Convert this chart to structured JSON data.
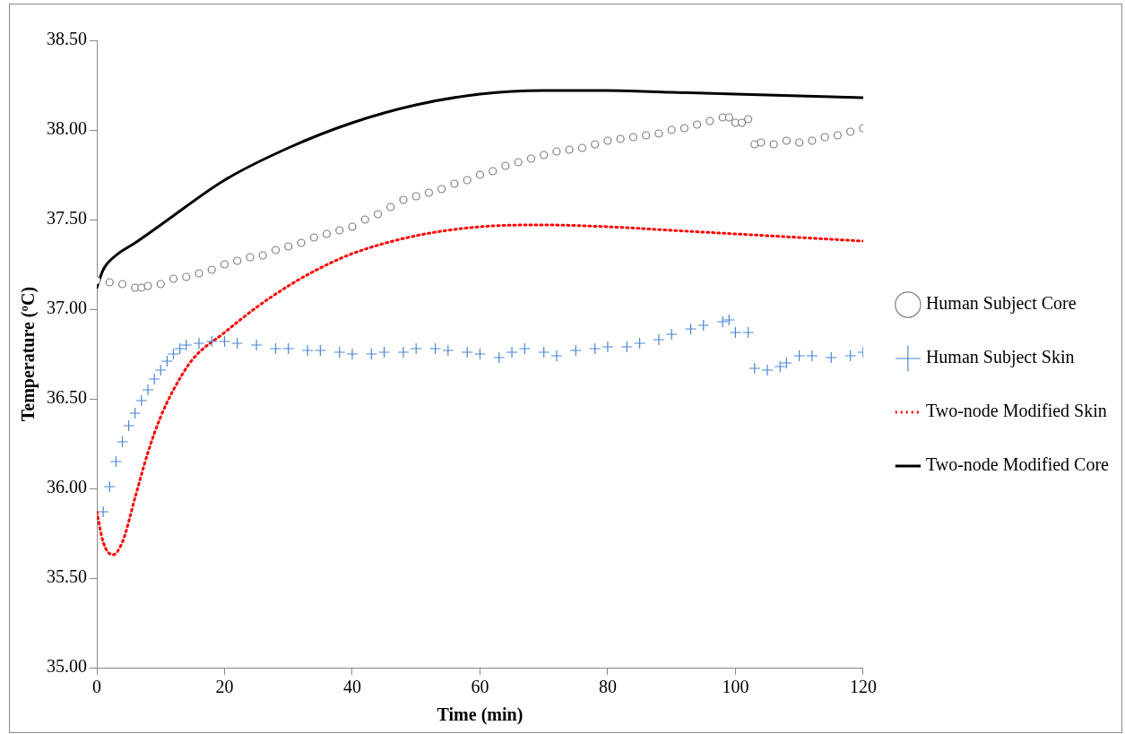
{
  "chart_data": {
    "type": "scatter",
    "xlabel": "Time (min)",
    "ylabel": "Temperature (ºC)",
    "xlim": [
      0,
      120
    ],
    "xticks": [
      0,
      20,
      40,
      60,
      80,
      100,
      120
    ],
    "ylim": [
      35,
      38.5
    ],
    "yticks": [
      {
        "value": 35,
        "label": "35.00"
      },
      {
        "value": 35.5,
        "label": "35.50"
      },
      {
        "value": 36,
        "label": "36.00"
      },
      {
        "value": 36.5,
        "label": "36.50"
      },
      {
        "value": 37,
        "label": "37.00"
      },
      {
        "value": 37.5,
        "label": "37.50"
      },
      {
        "value": 38,
        "label": "38.00"
      },
      {
        "value": 38.5,
        "label": "38.50"
      }
    ],
    "grid": false,
    "legend": "right",
    "series": [
      {
        "name": "Human Subject Core",
        "type": "scatter",
        "marker": "circle",
        "color": "#7f7f7f",
        "x": [
          0,
          2,
          4,
          6,
          7,
          8,
          10,
          12,
          14,
          16,
          18,
          20,
          22,
          24,
          26,
          28,
          30,
          32,
          34,
          36,
          38,
          40,
          42,
          44,
          46,
          48,
          50,
          52,
          54,
          56,
          58,
          60,
          62,
          64,
          66,
          68,
          70,
          72,
          74,
          76,
          78,
          80,
          82,
          84,
          86,
          88,
          90,
          92,
          94,
          96,
          98,
          99,
          100,
          101,
          102,
          103,
          104,
          106,
          108,
          110,
          112,
          114,
          116,
          118,
          120
        ],
        "values": [
          37.16,
          37.15,
          37.14,
          37.12,
          37.12,
          37.13,
          37.14,
          37.17,
          37.18,
          37.2,
          37.22,
          37.25,
          37.27,
          37.29,
          37.3,
          37.33,
          37.35,
          37.37,
          37.4,
          37.42,
          37.44,
          37.46,
          37.5,
          37.53,
          37.57,
          37.61,
          37.63,
          37.65,
          37.67,
          37.7,
          37.72,
          37.75,
          37.77,
          37.8,
          37.82,
          37.84,
          37.86,
          37.88,
          37.89,
          37.9,
          37.92,
          37.94,
          37.95,
          37.96,
          37.97,
          37.98,
          38,
          38.01,
          38.03,
          38.05,
          38.07,
          38.07,
          38.04,
          38.04,
          38.06,
          37.92,
          37.93,
          37.92,
          37.94,
          37.93,
          37.94,
          37.96,
          37.97,
          37.99,
          38.01
        ]
      },
      {
        "name": "Human Subject Skin",
        "type": "scatter",
        "marker": "cross",
        "color": "#4a86d4",
        "x": [
          1,
          2,
          3,
          4,
          5,
          6,
          7,
          8,
          9,
          10,
          11,
          12,
          13,
          14,
          16,
          18,
          20,
          22,
          25,
          28,
          30,
          33,
          35,
          38,
          40,
          43,
          45,
          48,
          50,
          53,
          55,
          58,
          60,
          63,
          65,
          67,
          70,
          72,
          75,
          78,
          80,
          83,
          85,
          88,
          90,
          93,
          95,
          98,
          99,
          100,
          102,
          103,
          105,
          107,
          108,
          110,
          112,
          115,
          118,
          120
        ],
        "values": [
          35.87,
          36.01,
          36.15,
          36.26,
          36.35,
          36.42,
          36.49,
          36.55,
          36.61,
          36.66,
          36.71,
          36.75,
          36.78,
          36.8,
          36.81,
          36.82,
          36.82,
          36.81,
          36.8,
          36.78,
          36.78,
          36.77,
          36.77,
          36.76,
          36.75,
          36.75,
          36.76,
          36.76,
          36.78,
          36.78,
          36.77,
          36.76,
          36.75,
          36.73,
          36.76,
          36.78,
          36.76,
          36.74,
          36.77,
          36.78,
          36.79,
          36.79,
          36.81,
          36.83,
          36.86,
          36.89,
          36.91,
          36.93,
          36.94,
          36.87,
          36.87,
          36.67,
          36.66,
          36.68,
          36.7,
          36.74,
          36.74,
          36.73,
          36.74,
          36.76
        ]
      },
      {
        "name": "Two-node Modified Skin",
        "type": "line",
        "marker": "none",
        "line_style": "dotted",
        "color": "#ff0000",
        "x": [
          0,
          1,
          2.5,
          4,
          6,
          8,
          10,
          12,
          15,
          20,
          25,
          30,
          35,
          40,
          50,
          60,
          70,
          80,
          90,
          100,
          110,
          120
        ],
        "values": [
          35.87,
          35.7,
          35.63,
          35.7,
          35.95,
          36.2,
          36.4,
          36.55,
          36.72,
          36.87,
          37.01,
          37.13,
          37.23,
          37.31,
          37.41,
          37.46,
          37.47,
          37.46,
          37.44,
          37.42,
          37.4,
          37.38
        ]
      },
      {
        "name": "Two-node Modified Core",
        "type": "line",
        "marker": "none",
        "line_style": "solid",
        "color": "#000000",
        "x": [
          0,
          1,
          3,
          6,
          10,
          20,
          30,
          40,
          50,
          60,
          70,
          80,
          90,
          100,
          110,
          120
        ],
        "values": [
          37.12,
          37.22,
          37.3,
          37.37,
          37.47,
          37.72,
          37.9,
          38.04,
          38.14,
          38.2,
          38.22,
          38.22,
          38.21,
          38.2,
          38.19,
          38.18
        ]
      }
    ]
  }
}
